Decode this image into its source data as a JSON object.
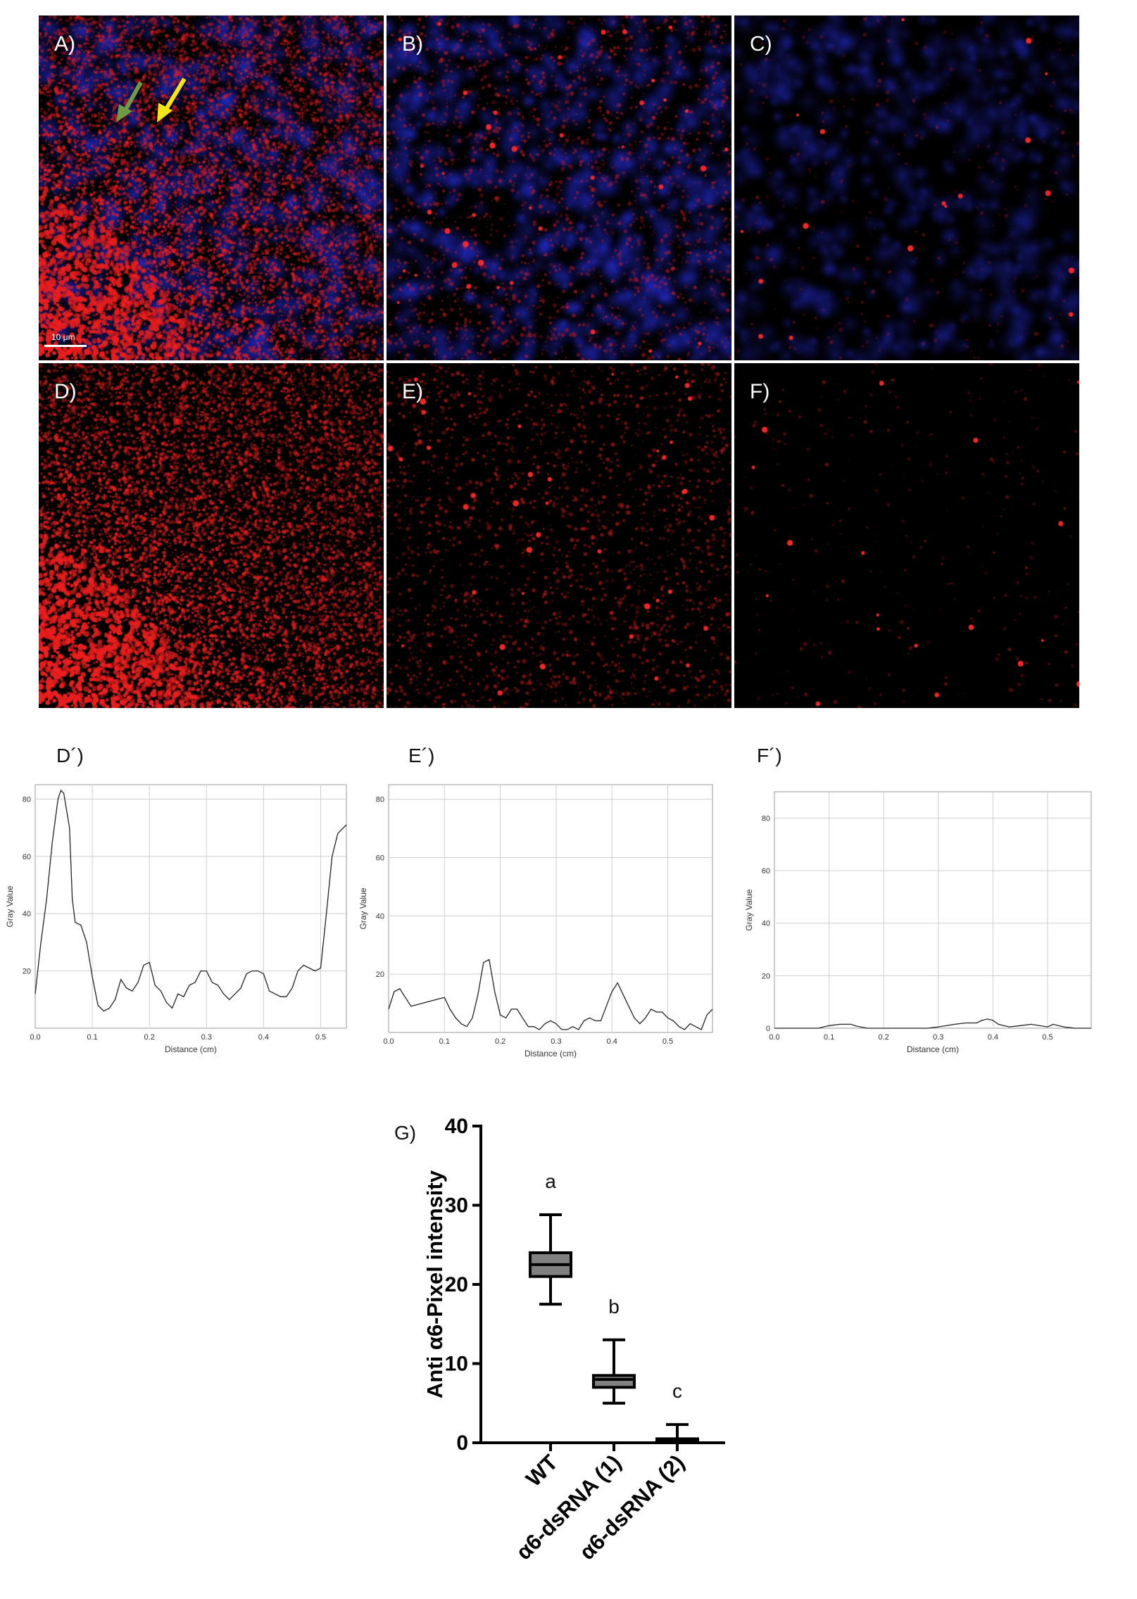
{
  "panels": [
    {
      "label": "A)",
      "channel": "merge"
    },
    {
      "label": "B)",
      "channel": "merge"
    },
    {
      "label": "C)",
      "channel": "merge"
    },
    {
      "label": "D)",
      "channel": "red"
    },
    {
      "label": "E)",
      "channel": "red"
    },
    {
      "label": "F)",
      "channel": "red"
    }
  ],
  "scale_bar": "10 μm",
  "arrow_colors": {
    "green": "#6f9a45",
    "yellow": "#f5e616"
  },
  "profiles": {
    "D": {
      "label": "D´)"
    },
    "E": {
      "label": "E´)"
    },
    "F": {
      "label": "F´)"
    }
  },
  "boxplot_label": "G)",
  "chart_data": [
    {
      "type": "line",
      "panel": "D´)",
      "xlabel": "Distance (cm)",
      "ylabel": "Gray Value",
      "xlim": [
        0,
        0.545
      ],
      "ylim": [
        0,
        85
      ],
      "xticks": [
        "0.0",
        "0.1",
        "0.2",
        "0.3",
        "0.4",
        "0.5"
      ],
      "yticks": [
        "20",
        "40",
        "60",
        "80"
      ],
      "grid": true,
      "x": [
        0.0,
        0.01,
        0.02,
        0.03,
        0.04,
        0.045,
        0.05,
        0.06,
        0.065,
        0.07,
        0.08,
        0.09,
        0.1,
        0.11,
        0.12,
        0.13,
        0.14,
        0.15,
        0.16,
        0.17,
        0.18,
        0.19,
        0.2,
        0.21,
        0.22,
        0.23,
        0.24,
        0.25,
        0.26,
        0.27,
        0.28,
        0.29,
        0.3,
        0.31,
        0.32,
        0.33,
        0.34,
        0.35,
        0.36,
        0.37,
        0.38,
        0.39,
        0.4,
        0.41,
        0.42,
        0.43,
        0.44,
        0.45,
        0.46,
        0.47,
        0.48,
        0.49,
        0.5,
        0.51,
        0.52,
        0.53,
        0.545
      ],
      "values": [
        12,
        30,
        45,
        65,
        80,
        83,
        82,
        70,
        45,
        37,
        36,
        30,
        18,
        8,
        6,
        7,
        10,
        17,
        14,
        13,
        16,
        22,
        23,
        15,
        13,
        9,
        7,
        12,
        11,
        15,
        16,
        20,
        20,
        16,
        15,
        12,
        10,
        12,
        14,
        19,
        20,
        20,
        19,
        13,
        12,
        11,
        11,
        14,
        20,
        22,
        21,
        20,
        21,
        40,
        60,
        68,
        71
      ]
    },
    {
      "type": "line",
      "panel": "E´)",
      "xlabel": "Distance (cm)",
      "ylabel": "Gray Value",
      "xlim": [
        0,
        0.58
      ],
      "ylim": [
        0,
        85
      ],
      "xticks": [
        "0.0",
        "0.1",
        "0.2",
        "0.3",
        "0.4",
        "0.5"
      ],
      "yticks": [
        "20",
        "40",
        "60",
        "80"
      ],
      "grid": true,
      "x": [
        0.0,
        0.01,
        0.02,
        0.03,
        0.04,
        0.06,
        0.08,
        0.1,
        0.11,
        0.12,
        0.13,
        0.14,
        0.15,
        0.16,
        0.17,
        0.18,
        0.19,
        0.2,
        0.21,
        0.22,
        0.23,
        0.24,
        0.25,
        0.26,
        0.27,
        0.28,
        0.29,
        0.3,
        0.31,
        0.32,
        0.33,
        0.34,
        0.35,
        0.36,
        0.37,
        0.38,
        0.39,
        0.4,
        0.41,
        0.42,
        0.43,
        0.44,
        0.45,
        0.46,
        0.47,
        0.48,
        0.49,
        0.5,
        0.51,
        0.52,
        0.53,
        0.54,
        0.55,
        0.56,
        0.57,
        0.58
      ],
      "values": [
        8,
        14,
        15,
        12,
        9,
        10,
        11,
        12,
        8,
        5,
        3,
        2,
        5,
        13,
        24,
        25,
        14,
        6,
        5,
        8,
        8,
        5,
        2,
        2,
        1,
        3,
        4,
        3,
        1,
        1,
        2,
        1,
        4,
        5,
        4,
        4,
        9,
        14,
        17,
        13,
        9,
        5,
        3,
        5,
        8,
        7,
        7,
        5,
        4,
        2,
        1,
        3,
        2,
        1,
        6,
        8
      ]
    },
    {
      "type": "line",
      "panel": "F´)",
      "xlabel": "Distance (cm)",
      "ylabel": "Gray Value",
      "xlim": [
        0,
        0.58
      ],
      "ylim": [
        0,
        90
      ],
      "xticks": [
        "0.0",
        "0.1",
        "0.2",
        "0.3",
        "0.4",
        "0.5"
      ],
      "yticks": [
        "0",
        "20",
        "40",
        "60",
        "80"
      ],
      "grid": true,
      "x": [
        0.0,
        0.05,
        0.08,
        0.1,
        0.12,
        0.14,
        0.15,
        0.17,
        0.2,
        0.25,
        0.28,
        0.3,
        0.33,
        0.35,
        0.37,
        0.38,
        0.39,
        0.4,
        0.41,
        0.43,
        0.45,
        0.47,
        0.5,
        0.51,
        0.53,
        0.55,
        0.58
      ],
      "values": [
        0,
        0,
        0,
        1,
        1.5,
        1.5,
        0.8,
        0,
        0,
        0,
        0,
        0.5,
        1.5,
        2,
        2,
        3,
        3.5,
        3,
        1.5,
        0.5,
        1,
        1.5,
        0.5,
        1.5,
        0.5,
        0,
        0
      ]
    },
    {
      "type": "box",
      "panel": "G)",
      "ylabel": "Anti α6-Pixel intensity",
      "ylim": [
        0,
        40
      ],
      "yticks": [
        "0",
        "10",
        "20",
        "30",
        "40"
      ],
      "categories": [
        "WT",
        "α6-dsRNA (1)",
        "α6-dsRNA (2)"
      ],
      "boxes": [
        {
          "min": 17.5,
          "q1": 21,
          "median": 22.5,
          "q3": 24,
          "max": 28.8,
          "letter": "a"
        },
        {
          "min": 5,
          "q1": 7,
          "median": 8,
          "q3": 8.5,
          "max": 13,
          "letter": "b"
        },
        {
          "min": 0,
          "q1": 0,
          "median": 0.3,
          "q3": 0.5,
          "max": 2.3,
          "letter": "c"
        }
      ],
      "box_fill": "#808080"
    }
  ]
}
